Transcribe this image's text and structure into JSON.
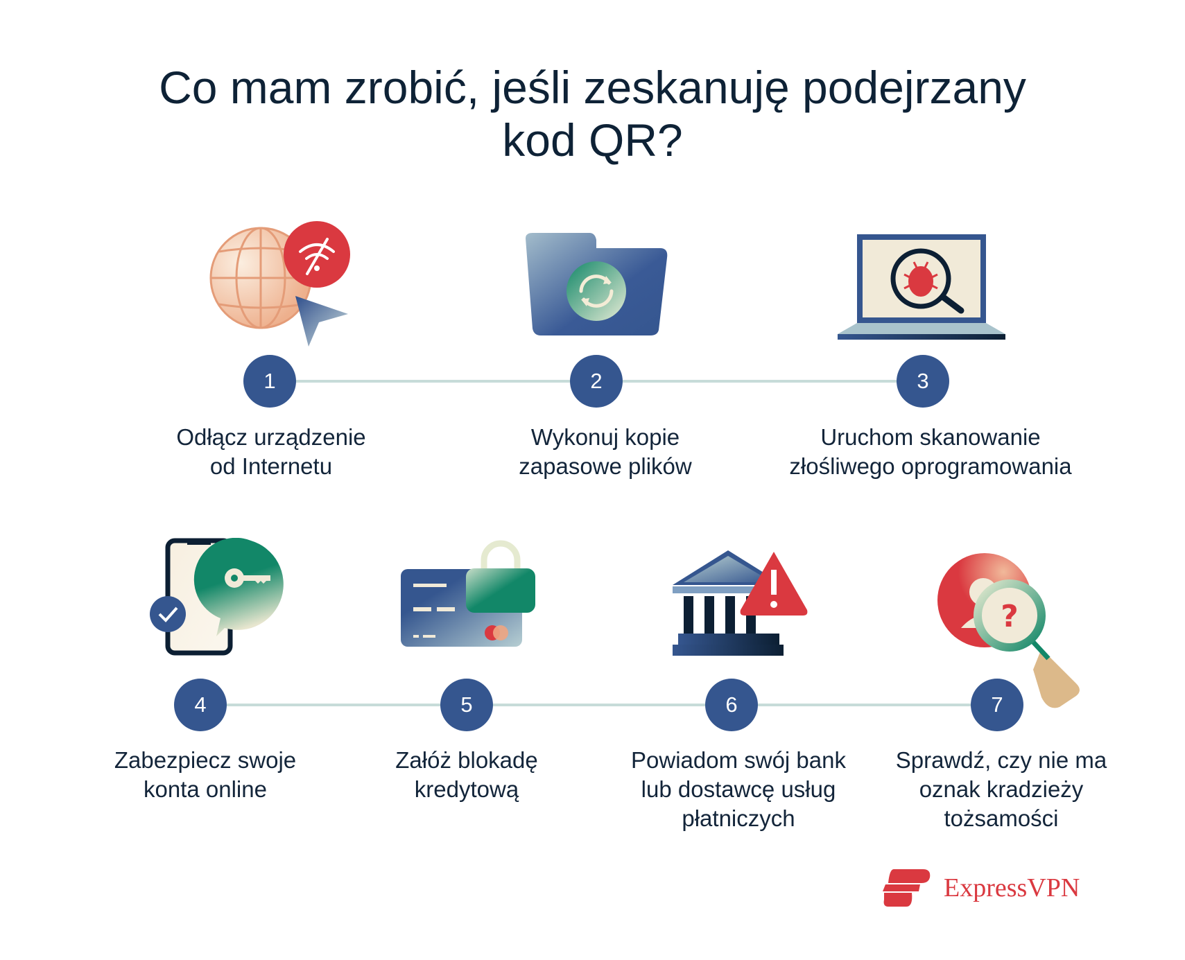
{
  "title": "Co mam zrobić, jeśli zeskanuję podejrzany kod QR?",
  "steps": [
    {
      "number": "1",
      "label_line1": "Odłącz urządzenie",
      "label_line2": "od Internetu",
      "icon": "globe-wifi-off-icon"
    },
    {
      "number": "2",
      "label_line1": "Wykonuj kopie",
      "label_line2": "zapasowe plików",
      "icon": "folder-sync-icon"
    },
    {
      "number": "3",
      "label_line1": "Uruchom skanowanie",
      "label_line2": "złośliwego oprogramowania",
      "icon": "laptop-bug-scan-icon"
    },
    {
      "number": "4",
      "label_line1": "Zabezpiecz swoje",
      "label_line2": "konta online",
      "icon": "phone-key-icon"
    },
    {
      "number": "5",
      "label_line1": "Załóż blokadę",
      "label_line2": "kredytową",
      "icon": "credit-card-lock-icon"
    },
    {
      "number": "6",
      "label_line1": "Powiadom swój bank",
      "label_line2": "lub dostawcę usług",
      "label_line3": "płatniczych",
      "icon": "bank-warning-icon"
    },
    {
      "number": "7",
      "label_line1": "Sprawdź, czy nie ma",
      "label_line2": "oznak kradzieży",
      "label_line3": "tożsamości",
      "icon": "identity-magnifier-icon"
    }
  ],
  "brand": {
    "name": "ExpressVPN",
    "color": "#da3940"
  },
  "colors": {
    "step_circle": "#35568f",
    "connector": "#c7dcd9",
    "text": "#0e2236"
  }
}
